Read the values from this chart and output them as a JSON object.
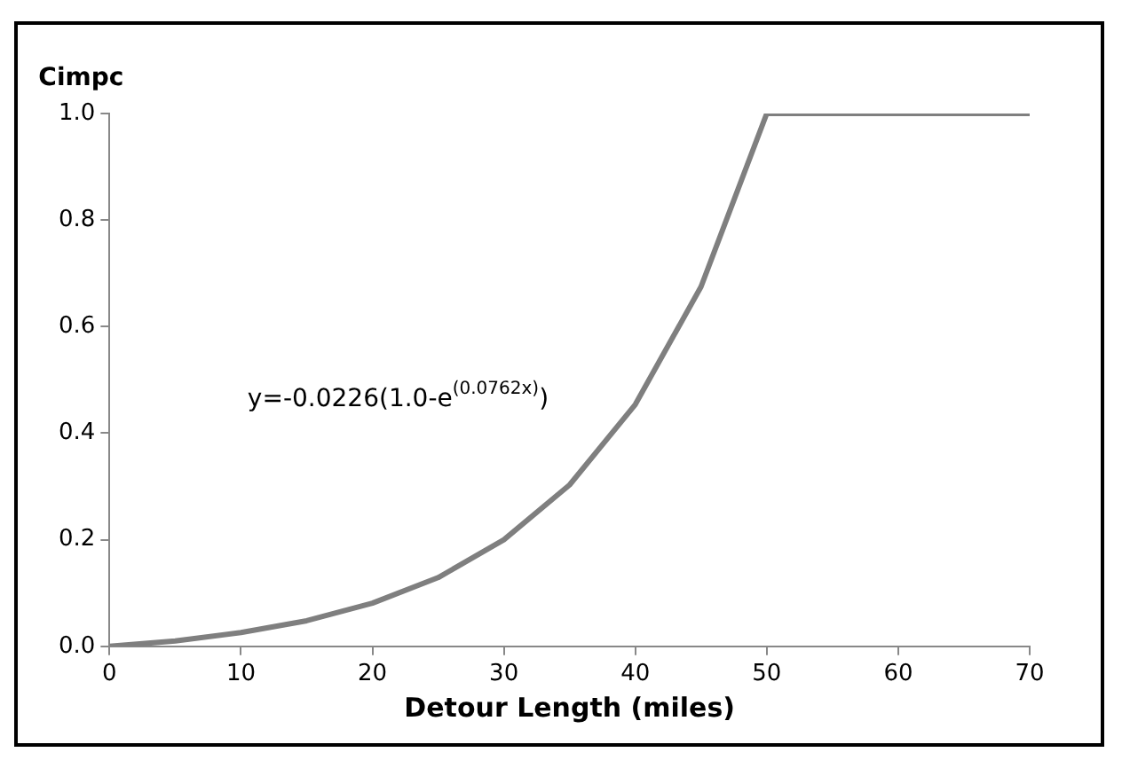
{
  "chart_data": {
    "type": "line",
    "ylabel": "Cimpc",
    "xlabel": "Detour Length (miles)",
    "annotations": [
      "y=-0.0226(1.0-e$^{(0.0762x)}$)"
    ],
    "x": [
      0,
      5,
      10,
      15,
      20,
      25,
      30,
      35,
      40,
      45,
      50,
      55,
      60,
      65,
      70
    ],
    "series": [
      {
        "color": "#7f7f7f",
        "values": [
          0,
          0.01,
          0.026,
          0.048,
          0.081,
          0.129,
          0.2,
          0.303,
          0.454,
          0.675,
          1.0,
          1.0,
          1.0,
          1.0,
          1.0
        ]
      }
    ],
    "xlim": [
      0,
      70
    ],
    "xticks": [
      0,
      10,
      20,
      30,
      40,
      50,
      60,
      70
    ],
    "ylim": [
      0,
      1
    ],
    "yticks": [
      {
        "value": 0,
        "label": "0.0"
      },
      {
        "value": 0.2,
        "label": "0.2"
      },
      {
        "value": 0.4,
        "label": "0.4"
      },
      {
        "value": 0.6,
        "label": "0.6"
      },
      {
        "value": 0.8,
        "label": "0.8"
      },
      {
        "value": 1,
        "label": "1.0"
      }
    ],
    "grid": false,
    "legend": false,
    "marker": "none",
    "line_style": "solid"
  }
}
